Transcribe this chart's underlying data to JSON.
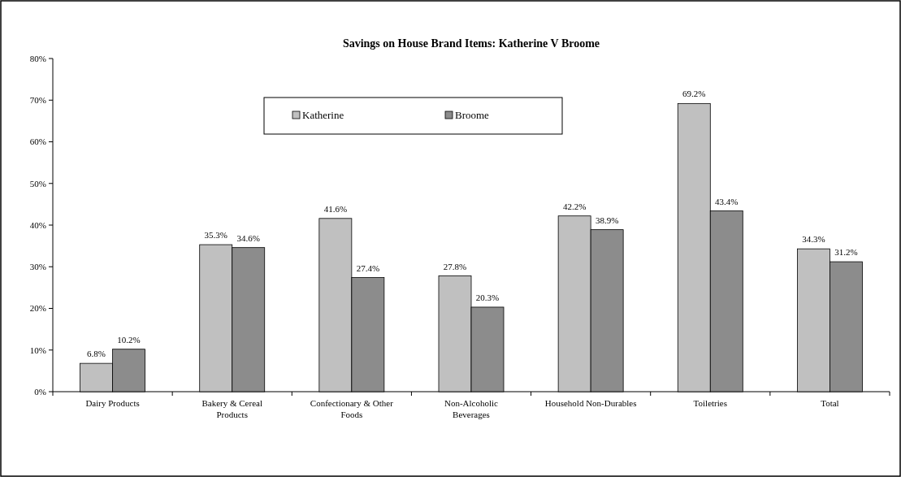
{
  "chart_data": {
    "type": "bar",
    "title": "Savings on House Brand Items: Katherine V Broome",
    "categories": [
      "Dairy Products",
      "Bakery & Cereal Products",
      "Confectionary & Other Foods",
      "Non-Alcoholic Beverages",
      "Household Non-Durables",
      "Toiletries",
      "Total"
    ],
    "series": [
      {
        "name": "Katherine",
        "color": "#c0c0c0",
        "values": [
          6.8,
          35.3,
          41.6,
          27.8,
          42.2,
          69.2,
          34.3
        ],
        "value_labels": [
          "6.8%",
          "35.3%",
          "41.6%",
          "27.8%",
          "42.2%",
          "69.2%",
          "34.3%"
        ]
      },
      {
        "name": "Broome",
        "color": "#8c8c8c",
        "values": [
          10.2,
          34.6,
          27.4,
          20.3,
          38.9,
          43.4,
          31.2
        ],
        "value_labels": [
          "10.2%",
          "34.6%",
          "27.4%",
          "20.3%",
          "38.9%",
          "43.4%",
          "31.2%"
        ]
      }
    ],
    "ylim": [
      0,
      80
    ],
    "yticks": [
      {
        "value": 0,
        "label": "0%"
      },
      {
        "value": 10,
        "label": "10%"
      },
      {
        "value": 20,
        "label": "20%"
      },
      {
        "value": 30,
        "label": "30%"
      },
      {
        "value": 40,
        "label": "40%"
      },
      {
        "value": 50,
        "label": "50%"
      },
      {
        "value": 60,
        "label": "60%"
      },
      {
        "value": 70,
        "label": "70%"
      },
      {
        "value": 80,
        "label": "80%"
      }
    ],
    "grid": false,
    "legend": "top"
  }
}
